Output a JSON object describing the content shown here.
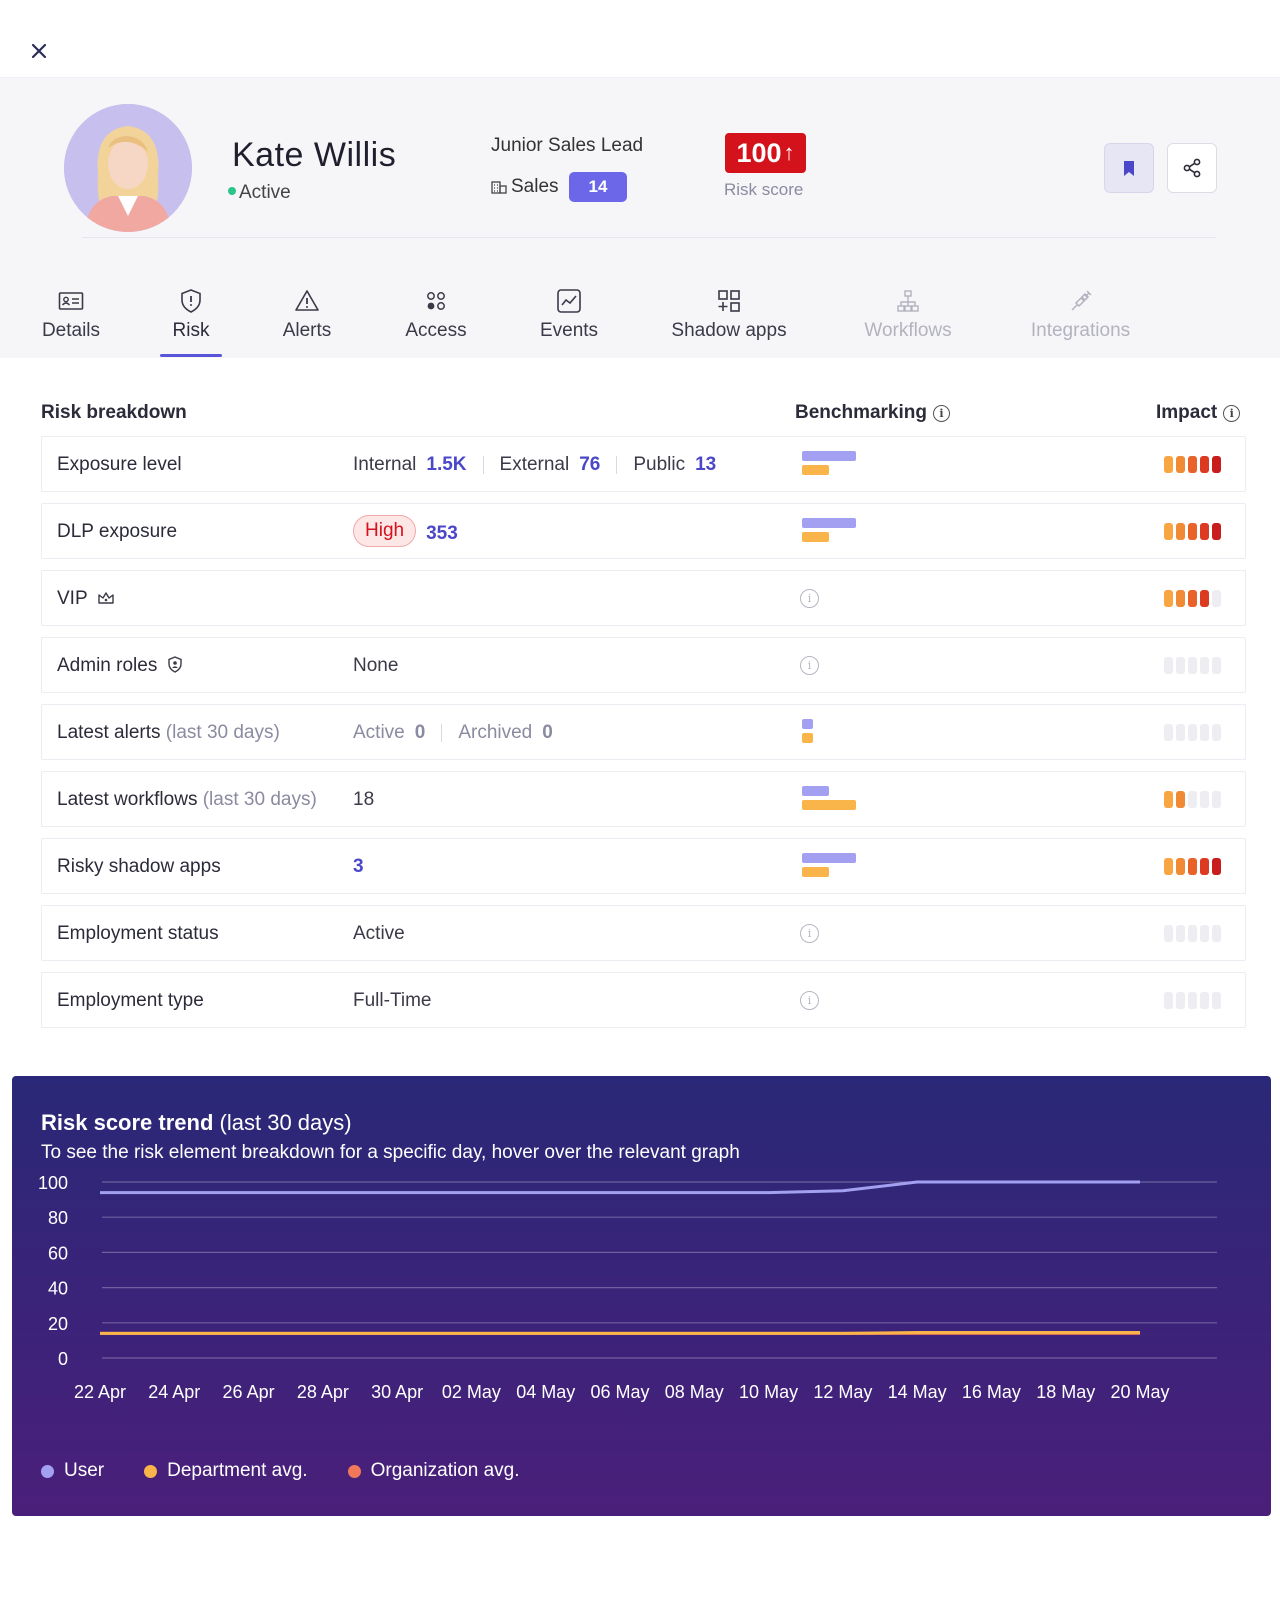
{
  "profile": {
    "name": "Kate Willis",
    "status": "Active",
    "job_title": "Junior Sales Lead",
    "department": "Sales",
    "department_count": "14",
    "risk_score": "100",
    "risk_score_label": "Risk score"
  },
  "tabs": [
    {
      "label": "Details",
      "icon": "id-card-icon",
      "state": "normal"
    },
    {
      "label": "Risk",
      "icon": "shield-icon",
      "state": "active"
    },
    {
      "label": "Alerts",
      "icon": "warning-icon",
      "state": "normal"
    },
    {
      "label": "Access",
      "icon": "dots-grid-icon",
      "state": "normal"
    },
    {
      "label": "Events",
      "icon": "chart-icon",
      "state": "normal"
    },
    {
      "label": "Shadow apps",
      "icon": "apps-icon",
      "state": "normal"
    },
    {
      "label": "Workflows",
      "icon": "workflow-icon",
      "state": "disabled"
    },
    {
      "label": "Integrations",
      "icon": "plug-icon",
      "state": "disabled"
    }
  ],
  "breakdown": {
    "title": "Risk breakdown",
    "benchmarking_label": "Benchmarking",
    "impact_label": "Impact",
    "colors": {
      "user_bar": "#a3a0f2",
      "dept_bar": "#f9b54a",
      "impact_levels": [
        "#f9a541",
        "#f08a34",
        "#e8622a",
        "#dd3a22",
        "#c91c1c"
      ],
      "impact_empty": "#ededf2"
    },
    "rows": [
      {
        "label": "Exposure level",
        "internal_label": "Internal",
        "internal_value": "1.5K",
        "external_label": "External",
        "external_value": "76",
        "public_label": "Public",
        "public_value": "13",
        "bench": [
          0.68,
          0.34
        ],
        "impact": 5
      },
      {
        "label": "DLP exposure",
        "pill": "High",
        "value": "353",
        "bench": [
          0.68,
          0.34
        ],
        "impact": 5
      },
      {
        "label": "VIP",
        "icon": "crown-icon",
        "bench": null,
        "impact": 4
      },
      {
        "label": "Admin roles",
        "icon": "admin-shield-icon",
        "value": "None",
        "bench": null,
        "impact": 0
      },
      {
        "label": "Latest alerts",
        "sub": "(last 30 days)",
        "active_label": "Active",
        "active_value": "0",
        "archived_label": "Archived",
        "archived_value": "0",
        "bench": [
          0.14,
          0.14
        ],
        "impact": 0
      },
      {
        "label": "Latest workflows",
        "sub": "(last 30 days)",
        "value": "18",
        "bench": [
          0.34,
          0.68
        ],
        "impact": 2
      },
      {
        "label": "Risky shadow apps",
        "value": "3",
        "bench": [
          0.68,
          0.34
        ],
        "impact": 5
      },
      {
        "label": "Employment status",
        "value": "Active",
        "bench": null,
        "impact": 0
      },
      {
        "label": "Employment type",
        "value": "Full-Time",
        "bench": null,
        "impact": 0
      }
    ]
  },
  "trend": {
    "title_bold": "Risk score trend",
    "title_rest": "(last 30 days)",
    "subtitle": "To see the risk element breakdown for a specific day, hover over the relevant graph",
    "chart_data": {
      "type": "line",
      "x": [
        "22 Apr",
        "24 Apr",
        "26 Apr",
        "28 Apr",
        "30 Apr",
        "02 May",
        "04 May",
        "06 May",
        "08 May",
        "10 May",
        "12 May",
        "14 May",
        "16 May",
        "18 May",
        "20 May"
      ],
      "ylim": [
        0,
        100
      ],
      "yticks": [
        0,
        20,
        40,
        60,
        80,
        100
      ],
      "series": [
        {
          "name": "User",
          "color": "#a3a0f2",
          "values": [
            94,
            94,
            94,
            94,
            94,
            94,
            94,
            94,
            94,
            94,
            95,
            100,
            100,
            100,
            100
          ]
        },
        {
          "name": "Department avg.",
          "color": "#f9b54a",
          "values": [
            14,
            14,
            14,
            14,
            14,
            14,
            14,
            14,
            14,
            14,
            14,
            14.5,
            14.5,
            14.5,
            14.5
          ]
        },
        {
          "name": "Organization avg.",
          "color": "#f2785a",
          "values": [
            14,
            14,
            14,
            14,
            14,
            14,
            14,
            14,
            14,
            14,
            14,
            14,
            14,
            14,
            14
          ]
        }
      ],
      "grid": true,
      "legend": "bottom-left"
    }
  }
}
